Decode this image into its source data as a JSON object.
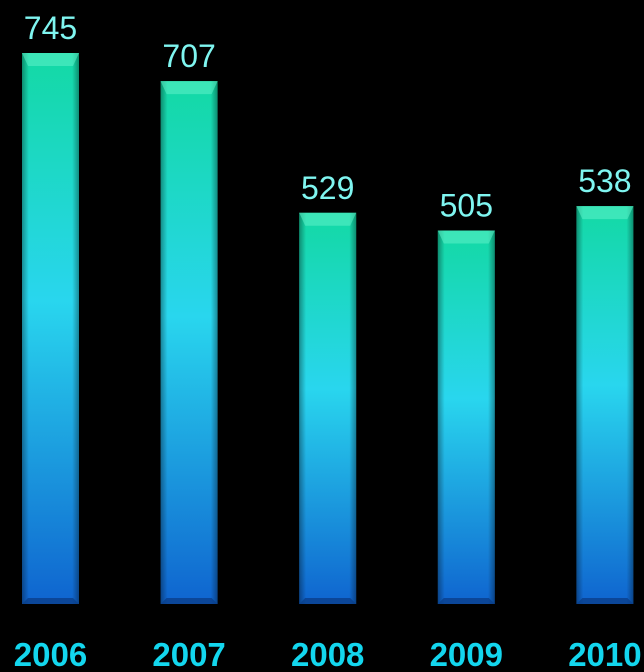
{
  "chart_data": {
    "type": "bar",
    "categories": [
      "2006",
      "2007",
      "2008",
      "2009",
      "2010"
    ],
    "values": [
      745,
      707,
      529,
      505,
      538
    ],
    "data_labels": [
      "745",
      "707",
      "529",
      "505",
      "538"
    ],
    "title": "",
    "xlabel": "",
    "ylabel": "",
    "ylim": [
      0,
      745
    ],
    "grid": false,
    "legend": "none",
    "colors": {
      "background": "#000000",
      "bar_top": "#13d9a4",
      "bar_mid": "#29d6ee",
      "bar_bottom": "#0f64cf",
      "value_label": "#7ff5f0",
      "category_label": "#13d6ee"
    }
  }
}
